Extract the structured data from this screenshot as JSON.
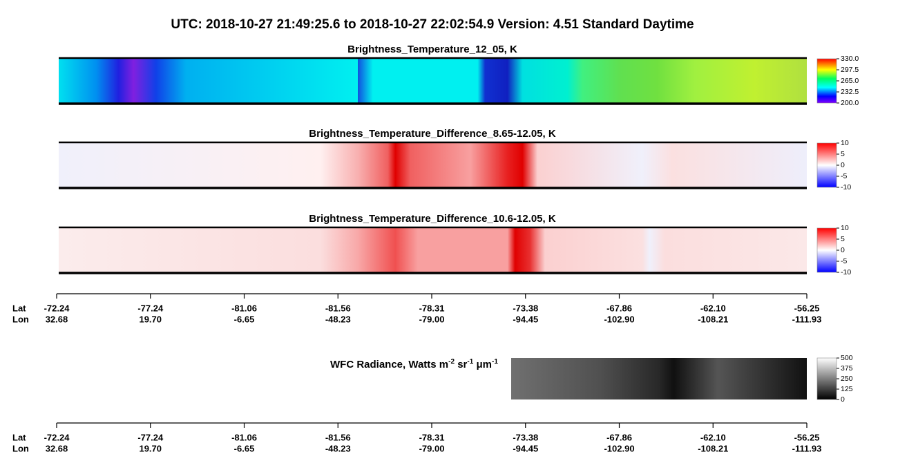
{
  "title": "UTC:  2018-10-27   21:49:25.6  to  2018-10-27   22:02:54.9    Version: 4.51  Standard Daytime",
  "panels": [
    {
      "title": "Brightness_Temperature_12_05, K",
      "clim": [
        200,
        330
      ],
      "colorbar_ticks": [
        {
          "value": 330,
          "label": "330.0"
        },
        {
          "value": 297.5,
          "label": "297.5"
        },
        {
          "value": 265,
          "label": "265.0"
        },
        {
          "value": 232.5,
          "label": "232.5"
        },
        {
          "value": 200,
          "label": "200.0"
        }
      ]
    },
    {
      "title": "Brightness_Temperature_Difference_8.65-12.05, K",
      "clim": [
        -10,
        10
      ],
      "colorbar_ticks": [
        10,
        5,
        0,
        -5,
        -10
      ]
    },
    {
      "title": "Brightness_Temperature_Difference_10.6-12.05, K",
      "clim": [
        -10,
        10
      ],
      "colorbar_ticks": [
        10,
        5,
        0,
        -5,
        -10
      ]
    }
  ],
  "wfc": {
    "title_parts": [
      "WFC Radiance, Watts m",
      "-2",
      " sr",
      "-1",
      " μm",
      "-1"
    ],
    "clim": [
      0,
      500
    ],
    "colorbar_ticks": [
      500,
      375,
      250,
      125,
      0
    ]
  },
  "axis": {
    "row_labels": [
      "Lat",
      "Lon"
    ],
    "lat": [
      -72.24,
      -77.24,
      -81.06,
      -81.56,
      -78.31,
      -73.38,
      -67.86,
      -62.1,
      -56.25
    ],
    "lat_labels": [
      "-72.24",
      "-77.24",
      "-81.06",
      "-81.56",
      "-78.31",
      "-73.38",
      "-67.86",
      "-62.10",
      "-56.25"
    ],
    "lon": [
      32.68,
      19.7,
      -6.65,
      -48.23,
      -79,
      -94.45,
      -102.9,
      -108.21,
      -111.93
    ],
    "lon_labels": [
      "32.68",
      "19.70",
      "-6.65",
      "-48.23",
      "-79.00",
      "-94.45",
      "-102.90",
      "-108.21",
      "-111.93"
    ]
  }
}
